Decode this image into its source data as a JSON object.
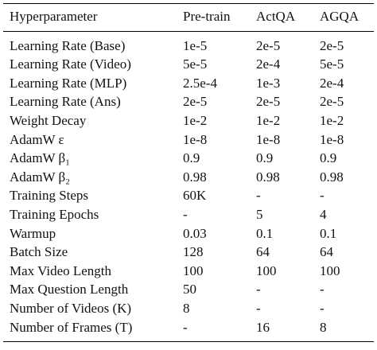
{
  "table": {
    "headers": [
      "Hyperparameter",
      "Pre-train",
      "ActQA",
      "AGQA"
    ],
    "rows": [
      [
        "Learning Rate (Base)",
        "1e-5",
        "2e-5",
        "2e-5"
      ],
      [
        "Learning Rate (Video)",
        "5e-5",
        "2e-4",
        "5e-5"
      ],
      [
        "Learning Rate (MLP)",
        "2.5e-4",
        "1e-3",
        "2e-4"
      ],
      [
        "Learning Rate (Ans)",
        "2e-5",
        "2e-5",
        "2e-5"
      ],
      [
        "Weight Decay",
        "1e-2",
        "1e-2",
        "1e-2"
      ],
      [
        "AdamW ε",
        "1e-8",
        "1e-8",
        "1e-8"
      ],
      [
        "AdamW β₁",
        "0.9",
        "0.9",
        "0.9"
      ],
      [
        "AdamW β₂",
        "0.98",
        "0.98",
        "0.98"
      ],
      [
        "Training Steps",
        "60K",
        "-",
        "-"
      ],
      [
        "Training Epochs",
        "-",
        "5",
        "4"
      ],
      [
        "Warmup",
        "0.03",
        "0.1",
        "0.1"
      ],
      [
        "Batch Size",
        "128",
        "64",
        "64"
      ],
      [
        "Max Video Length",
        "100",
        "100",
        "100"
      ],
      [
        "Max Question Length",
        "50",
        "-",
        "-"
      ],
      [
        "Number of Videos (K)",
        "8",
        "-",
        "-"
      ],
      [
        "Number of Frames (T)",
        "-",
        "16",
        "8"
      ]
    ]
  }
}
